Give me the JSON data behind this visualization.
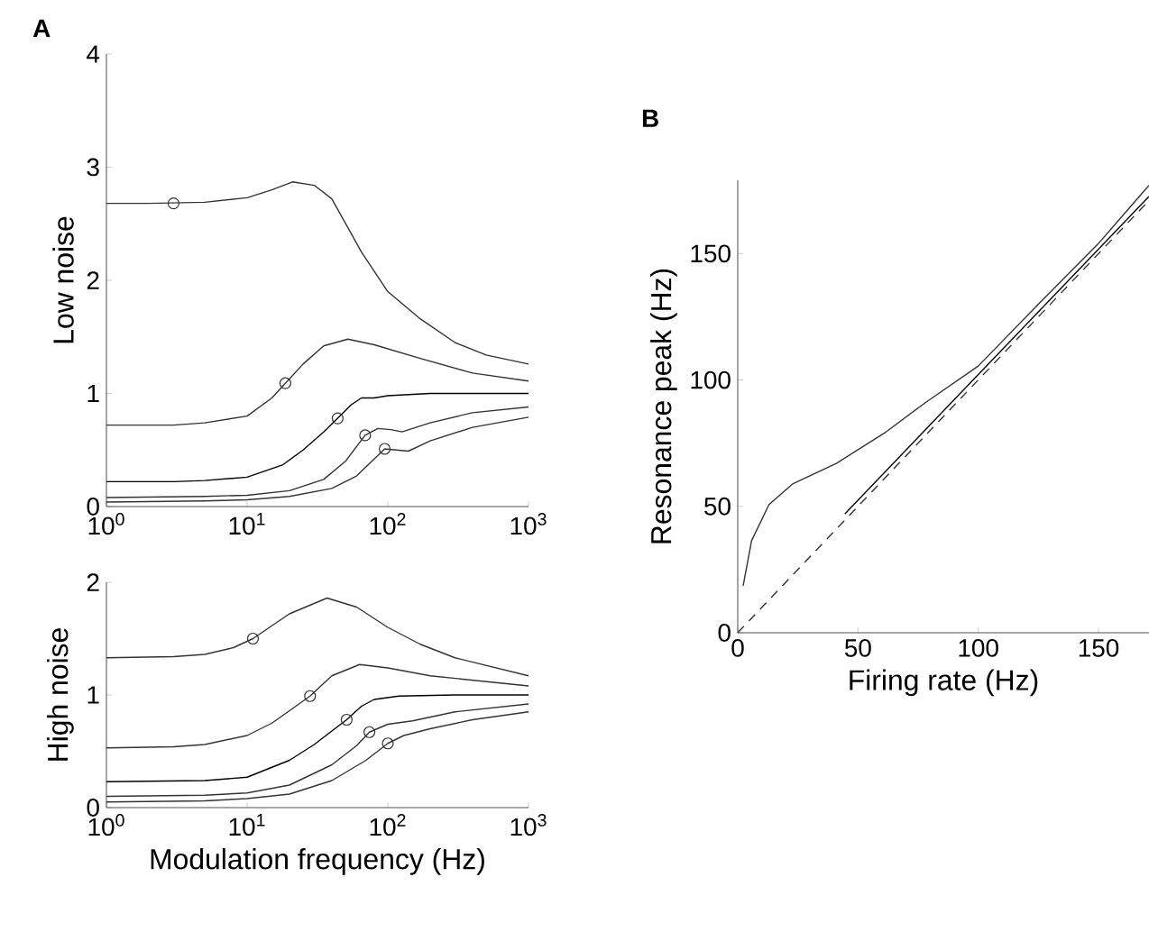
{
  "chart_data": [
    {
      "type": "line",
      "title": "A",
      "ylabel": "Low noise",
      "log": "x",
      "grid": false,
      "marker": "none",
      "line_style": "solid",
      "xlim": [
        1,
        1000
      ],
      "ylim": [
        0,
        4
      ],
      "xticks": [
        {
          "value": 1,
          "label": "10$^{0}$"
        },
        {
          "value": 10,
          "label": "10$^{1}$"
        },
        {
          "value": 100,
          "label": "10$^{2}$"
        },
        {
          "value": 1000,
          "label": "10$^{3}$"
        }
      ],
      "yticks": [
        0,
        1,
        2,
        3,
        4
      ],
      "series": [
        {
          "color": "#333333",
          "x": [
            1,
            2,
            5,
            10,
            15,
            21,
            30,
            40,
            65,
            100,
            170,
            300,
            500,
            1000
          ],
          "values": [
            2.68,
            2.68,
            2.69,
            2.73,
            2.8,
            2.87,
            2.84,
            2.72,
            2.25,
            1.9,
            1.66,
            1.45,
            1.34,
            1.26
          ]
        },
        {
          "color": "#333333",
          "x": [
            1,
            3,
            5,
            10,
            15,
            18.7,
            25,
            35,
            52,
            80,
            170,
            400,
            1000
          ],
          "values": [
            0.72,
            0.72,
            0.74,
            0.8,
            0.96,
            1.09,
            1.26,
            1.42,
            1.48,
            1.43,
            1.31,
            1.18,
            1.11
          ]
        },
        {
          "color": "#000000",
          "x": [
            1,
            3,
            5,
            10,
            18,
            25,
            35,
            44,
            55,
            65,
            80,
            100,
            200,
            1000
          ],
          "values": [
            0.22,
            0.22,
            0.23,
            0.26,
            0.37,
            0.5,
            0.66,
            0.78,
            0.9,
            0.96,
            0.96,
            0.98,
            1.0,
            1.0
          ]
        },
        {
          "color": "#333333",
          "x": [
            1,
            5,
            10,
            20,
            35,
            50,
            69,
            85,
            105,
            126,
            200,
            400,
            1000
          ],
          "values": [
            0.08,
            0.09,
            0.1,
            0.14,
            0.24,
            0.4,
            0.63,
            0.69,
            0.68,
            0.66,
            0.74,
            0.83,
            0.88
          ]
        },
        {
          "color": "#333333",
          "x": [
            1,
            5,
            10,
            20,
            40,
            60,
            80,
            95,
            115,
            140,
            200,
            400,
            1000
          ],
          "values": [
            0.04,
            0.05,
            0.06,
            0.09,
            0.16,
            0.27,
            0.42,
            0.51,
            0.5,
            0.49,
            0.58,
            0.7,
            0.79
          ]
        },
        {
          "type": "scatter",
          "marker": "circle",
          "color": "#333333",
          "x": [
            3,
            18.7,
            44,
            69,
            95
          ],
          "values": [
            2.68,
            1.09,
            0.78,
            0.63,
            0.51
          ]
        }
      ]
    },
    {
      "type": "line",
      "xlabel": "Modulation frequency (Hz)",
      "ylabel": "High noise",
      "log": "x",
      "grid": false,
      "marker": "none",
      "line_style": "solid",
      "xlim": [
        1,
        1000
      ],
      "ylim": [
        0,
        2
      ],
      "xticks": [
        {
          "value": 1,
          "label": "10$^{0}$"
        },
        {
          "value": 10,
          "label": "10$^{1}$"
        },
        {
          "value": 100,
          "label": "10$^{2}$"
        },
        {
          "value": 1000,
          "label": "10$^{3}$"
        }
      ],
      "yticks": [
        0,
        1,
        2
      ],
      "series": [
        {
          "color": "#333333",
          "x": [
            1,
            3,
            5,
            8,
            11,
            20,
            37,
            60,
            100,
            170,
            300,
            1000
          ],
          "values": [
            1.33,
            1.34,
            1.36,
            1.42,
            1.5,
            1.72,
            1.86,
            1.78,
            1.6,
            1.45,
            1.33,
            1.17
          ]
        },
        {
          "color": "#333333",
          "x": [
            1,
            3,
            5,
            10,
            15,
            20,
            28,
            40,
            63,
            100,
            200,
            1000
          ],
          "values": [
            0.53,
            0.54,
            0.56,
            0.64,
            0.75,
            0.86,
            0.99,
            1.17,
            1.27,
            1.24,
            1.17,
            1.08
          ]
        },
        {
          "color": "#000000",
          "x": [
            1,
            5,
            10,
            20,
            30,
            40,
            51,
            65,
            80,
            120,
            300,
            1000
          ],
          "values": [
            0.23,
            0.24,
            0.27,
            0.42,
            0.56,
            0.68,
            0.78,
            0.9,
            0.96,
            0.99,
            1.0,
            1.0
          ]
        },
        {
          "color": "#333333",
          "x": [
            1,
            5,
            10,
            20,
            40,
            60,
            74,
            100,
            150,
            300,
            1000
          ],
          "values": [
            0.1,
            0.11,
            0.13,
            0.2,
            0.38,
            0.55,
            0.67,
            0.74,
            0.77,
            0.85,
            0.92
          ]
        },
        {
          "color": "#333333",
          "x": [
            1,
            5,
            10,
            20,
            40,
            70,
            100,
            130,
            200,
            400,
            1000
          ],
          "values": [
            0.05,
            0.06,
            0.08,
            0.12,
            0.24,
            0.42,
            0.57,
            0.64,
            0.7,
            0.78,
            0.85
          ]
        },
        {
          "type": "scatter",
          "marker": "circle",
          "color": "#333333",
          "x": [
            11,
            28,
            51,
            74,
            100
          ],
          "values": [
            1.5,
            0.99,
            0.78,
            0.67,
            0.57
          ]
        }
      ]
    },
    {
      "type": "line",
      "title": "B",
      "xlabel": "Firing rate (Hz)",
      "ylabel": "Resonance peak (Hz)",
      "grid": false,
      "marker": "none",
      "xlim": [
        0,
        171
      ],
      "ylim": [
        0,
        179
      ],
      "xticks": [
        0,
        50,
        100,
        150
      ],
      "yticks": [
        0,
        50,
        100,
        150
      ],
      "series": [
        {
          "color": "#333333",
          "x": [
            2.25,
            5.75,
            13,
            23,
            41,
            61,
            78,
            100,
            125,
            150,
            171
          ],
          "values": [
            18.6,
            36.4,
            50.7,
            59,
            67,
            79,
            91,
            105.5,
            130,
            154,
            177
          ]
        },
        {
          "color": "#000000",
          "x": [
            44.5,
            171
          ],
          "values": [
            47,
            172.6
          ]
        },
        {
          "color": "#333333",
          "line_style": "dashed",
          "x": [
            0,
            171
          ],
          "values": [
            0,
            171
          ]
        }
      ]
    }
  ]
}
